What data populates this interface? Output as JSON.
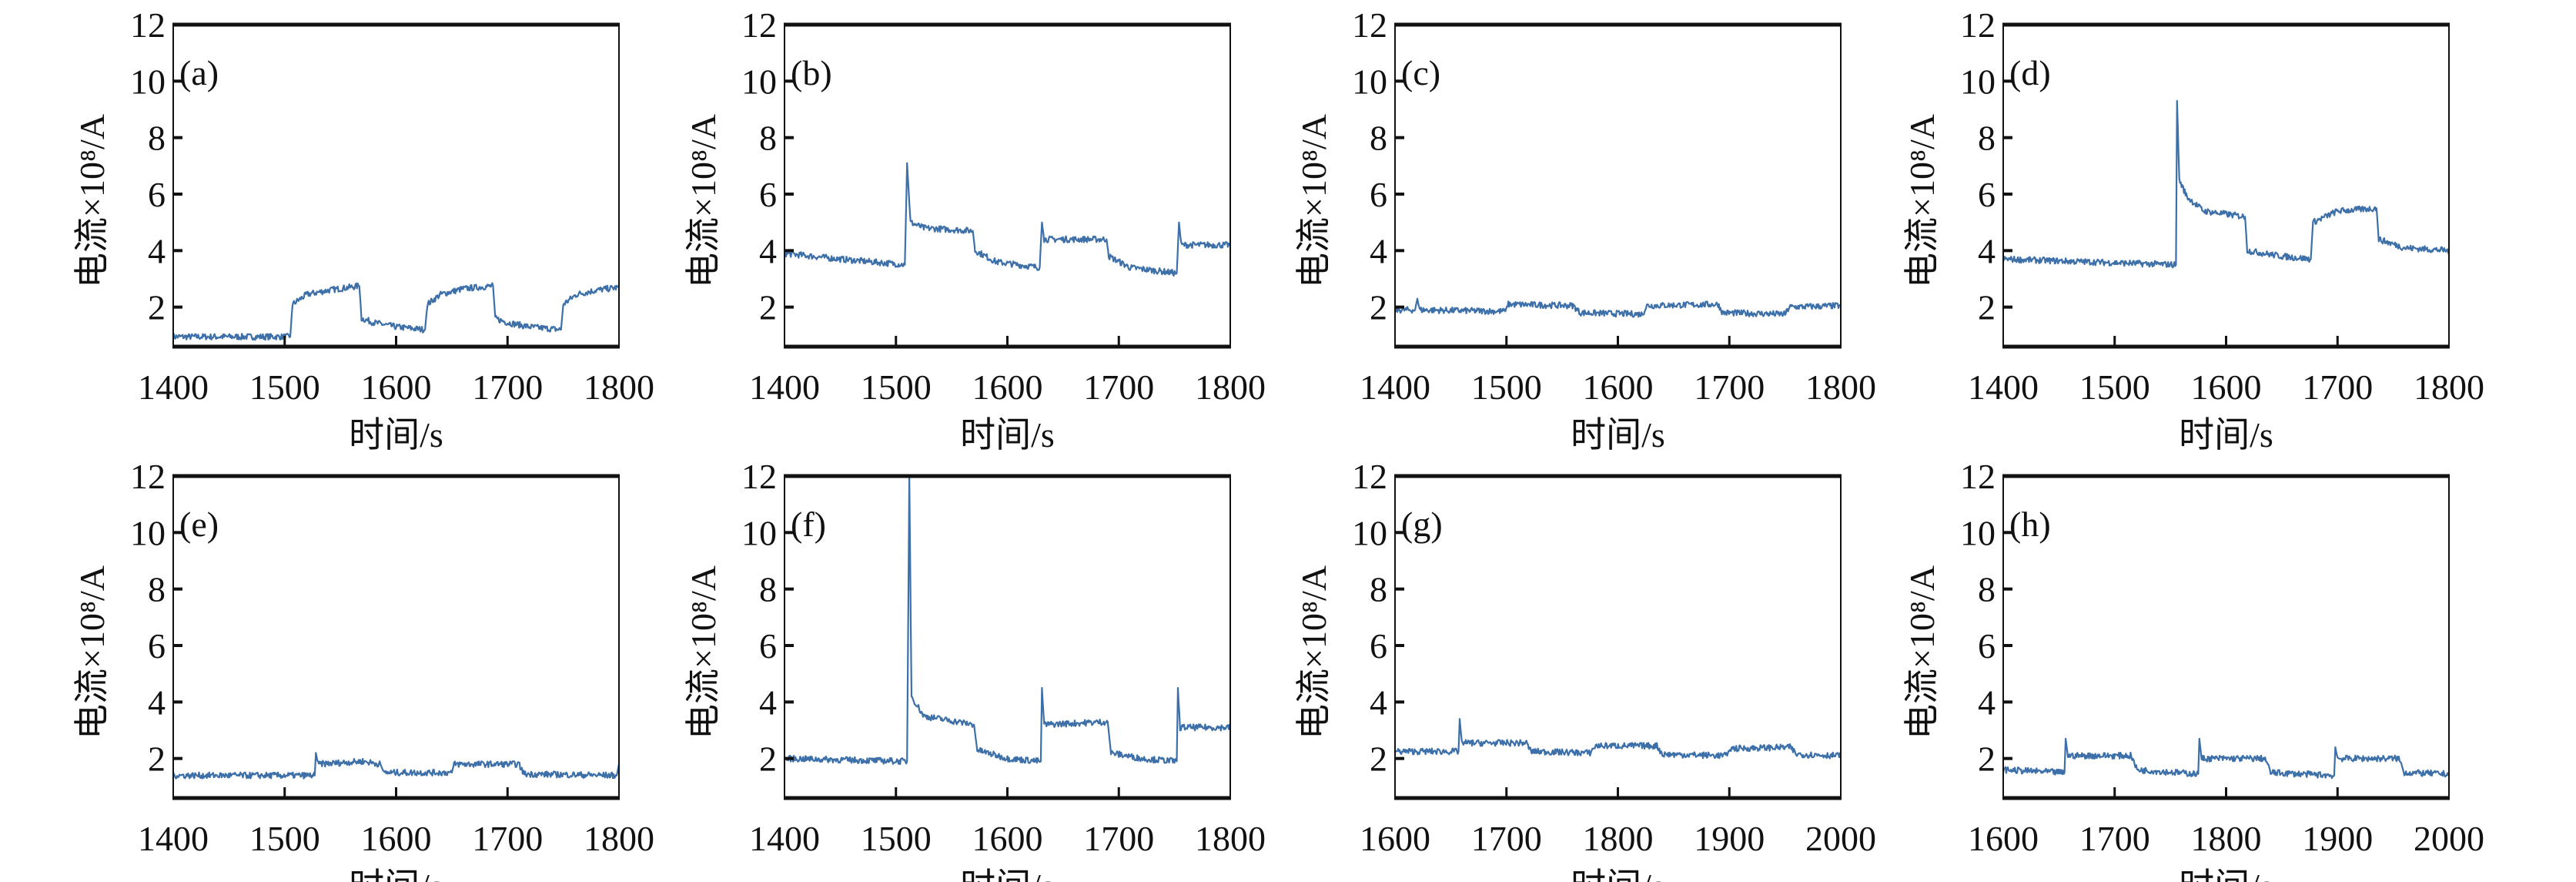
{
  "line_color": "#3d6fa8",
  "chart_data": [
    {
      "panel_label": "(a)",
      "type": "line",
      "xlabel": "时间/s",
      "ylabel": "电流×10⁸/A",
      "xlim": [
        1400,
        1800
      ],
      "ylim": [
        0.6,
        12
      ],
      "xticks": [
        "1400",
        "1500",
        "1600",
        "1700",
        "1800"
      ],
      "yticks": [
        "2",
        "4",
        "6",
        "8",
        "10",
        "12"
      ],
      "points": [
        [
          1400,
          0.95
        ],
        [
          1505,
          0.95
        ],
        [
          1507,
          2.1
        ],
        [
          1520,
          2.45
        ],
        [
          1540,
          2.6
        ],
        [
          1567,
          2.75
        ],
        [
          1569,
          1.6
        ],
        [
          1580,
          1.45
        ],
        [
          1600,
          1.3
        ],
        [
          1626,
          1.2
        ],
        [
          1628,
          2.1
        ],
        [
          1640,
          2.45
        ],
        [
          1660,
          2.65
        ],
        [
          1687,
          2.75
        ],
        [
          1689,
          1.6
        ],
        [
          1700,
          1.45
        ],
        [
          1720,
          1.3
        ],
        [
          1748,
          1.2
        ],
        [
          1750,
          2.1
        ],
        [
          1762,
          2.45
        ],
        [
          1780,
          2.6
        ],
        [
          1800,
          2.7
        ]
      ]
    },
    {
      "panel_label": "(b)",
      "type": "line",
      "xlabel": "时间/s",
      "ylabel": "电流×10⁸/A",
      "xlim": [
        1400,
        1800
      ],
      "ylim": [
        0.6,
        12
      ],
      "xticks": [
        "1400",
        "1500",
        "1600",
        "1700",
        "1800"
      ],
      "yticks": [
        "2",
        "4",
        "6",
        "8",
        "10",
        "12"
      ],
      "points": [
        [
          1400,
          3.9
        ],
        [
          1450,
          3.7
        ],
        [
          1508,
          3.5
        ],
        [
          1510,
          7.1
        ],
        [
          1513,
          5.0
        ],
        [
          1525,
          4.8
        ],
        [
          1569,
          4.7
        ],
        [
          1571,
          4.0
        ],
        [
          1590,
          3.6
        ],
        [
          1629,
          3.4
        ],
        [
          1631,
          5.0
        ],
        [
          1633,
          4.4
        ],
        [
          1689,
          4.4
        ],
        [
          1691,
          3.8
        ],
        [
          1710,
          3.4
        ],
        [
          1752,
          3.2
        ],
        [
          1754,
          5.0
        ],
        [
          1756,
          4.2
        ],
        [
          1800,
          4.2
        ]
      ]
    },
    {
      "panel_label": "(c)",
      "type": "line",
      "xlabel": "时间/s",
      "ylabel": "电流×10⁸/A",
      "xlim": [
        1400,
        1800
      ],
      "ylim": [
        0.6,
        12
      ],
      "xticks": [
        "1400",
        "1500",
        "1600",
        "1700",
        "1800"
      ],
      "yticks": [
        "2",
        "4",
        "6",
        "8",
        "10",
        "12"
      ],
      "points": [
        [
          1400,
          1.9
        ],
        [
          1418,
          1.9
        ],
        [
          1420,
          2.3
        ],
        [
          1422,
          1.9
        ],
        [
          1499,
          1.85
        ],
        [
          1501,
          2.1
        ],
        [
          1560,
          2.05
        ],
        [
          1566,
          1.8
        ],
        [
          1622,
          1.75
        ],
        [
          1626,
          2.05
        ],
        [
          1690,
          2.1
        ],
        [
          1694,
          1.8
        ],
        [
          1750,
          1.75
        ],
        [
          1754,
          2.0
        ],
        [
          1800,
          2.05
        ]
      ]
    },
    {
      "panel_label": "(d)",
      "type": "line",
      "xlabel": "时间/s",
      "ylabel": "电流×10⁸/A",
      "xlim": [
        1400,
        1800
      ],
      "ylim": [
        0.6,
        12
      ],
      "xticks": [
        "1400",
        "1500",
        "1600",
        "1700",
        "1800"
      ],
      "yticks": [
        "2",
        "4",
        "6",
        "8",
        "10",
        "12"
      ],
      "points": [
        [
          1400,
          3.7
        ],
        [
          1555,
          3.5
        ],
        [
          1556,
          9.3
        ],
        [
          1558,
          6.5
        ],
        [
          1565,
          5.9
        ],
        [
          1580,
          5.4
        ],
        [
          1617,
          5.2
        ],
        [
          1619,
          4.0
        ],
        [
          1650,
          3.8
        ],
        [
          1676,
          3.7
        ],
        [
          1678,
          5.0
        ],
        [
          1700,
          5.4
        ],
        [
          1735,
          5.5
        ],
        [
          1737,
          4.4
        ],
        [
          1760,
          4.1
        ],
        [
          1800,
          4.0
        ]
      ]
    },
    {
      "panel_label": "(e)",
      "type": "line",
      "xlabel": "时间/s",
      "ylabel": "电流×10⁸/A",
      "xlim": [
        1400,
        1800
      ],
      "ylim": [
        0.6,
        12
      ],
      "xticks": [
        "1400",
        "1500",
        "1600",
        "1700",
        "1800"
      ],
      "yticks": [
        "2",
        "4",
        "6",
        "8",
        "10",
        "12"
      ],
      "points": [
        [
          1400,
          1.4
        ],
        [
          1527,
          1.4
        ],
        [
          1528,
          2.2
        ],
        [
          1530,
          1.8
        ],
        [
          1570,
          1.9
        ],
        [
          1586,
          1.8
        ],
        [
          1589,
          1.5
        ],
        [
          1650,
          1.5
        ],
        [
          1652,
          1.8
        ],
        [
          1710,
          1.8
        ],
        [
          1715,
          1.45
        ],
        [
          1798,
          1.4
        ],
        [
          1800,
          1.8
        ]
      ]
    },
    {
      "panel_label": "(f)",
      "type": "line",
      "xlabel": "时间/s",
      "ylabel": "电流×10⁸/A",
      "xlim": [
        1400,
        1800
      ],
      "ylim": [
        0.6,
        12
      ],
      "xticks": [
        "1400",
        "1500",
        "1600",
        "1700",
        "1800"
      ],
      "yticks": [
        "2",
        "4",
        "6",
        "8",
        "10",
        "12"
      ],
      "points": [
        [
          1400,
          2.0
        ],
        [
          1510,
          1.9
        ],
        [
          1512,
          12
        ],
        [
          1514,
          4.2
        ],
        [
          1525,
          3.5
        ],
        [
          1570,
          3.2
        ],
        [
          1573,
          2.3
        ],
        [
          1600,
          2.0
        ],
        [
          1630,
          1.9
        ],
        [
          1631,
          4.5
        ],
        [
          1633,
          3.2
        ],
        [
          1690,
          3.3
        ],
        [
          1693,
          2.2
        ],
        [
          1720,
          2.0
        ],
        [
          1752,
          1.9
        ],
        [
          1753,
          4.5
        ],
        [
          1755,
          3.1
        ],
        [
          1800,
          3.1
        ]
      ]
    },
    {
      "panel_label": "(g)",
      "type": "line",
      "xlabel": "时间/s",
      "ylabel": "电流×10⁸/A",
      "xlim": [
        1600,
        2000
      ],
      "ylim": [
        0.6,
        12
      ],
      "xticks": [
        "1600",
        "1700",
        "1800",
        "1900",
        "2000"
      ],
      "yticks": [
        "2",
        "4",
        "6",
        "8",
        "10",
        "12"
      ],
      "points": [
        [
          1600,
          2.25
        ],
        [
          1657,
          2.25
        ],
        [
          1658,
          3.4
        ],
        [
          1660,
          2.55
        ],
        [
          1718,
          2.55
        ],
        [
          1722,
          2.25
        ],
        [
          1775,
          2.2
        ],
        [
          1780,
          2.45
        ],
        [
          1835,
          2.45
        ],
        [
          1840,
          2.15
        ],
        [
          1898,
          2.1
        ],
        [
          1900,
          2.35
        ],
        [
          1955,
          2.4
        ],
        [
          1960,
          2.15
        ],
        [
          2000,
          2.1
        ]
      ]
    },
    {
      "panel_label": "(h)",
      "type": "line",
      "xlabel": "时间/s",
      "ylabel": "电流×10⁸/A",
      "xlim": [
        1600,
        2000
      ],
      "ylim": [
        0.6,
        12
      ],
      "xticks": [
        "1600",
        "1700",
        "1800",
        "1900",
        "2000"
      ],
      "yticks": [
        "2",
        "4",
        "6",
        "8",
        "10",
        "12"
      ],
      "points": [
        [
          1600,
          1.6
        ],
        [
          1655,
          1.5
        ],
        [
          1656,
          2.7
        ],
        [
          1658,
          2.1
        ],
        [
          1715,
          2.1
        ],
        [
          1720,
          1.6
        ],
        [
          1775,
          1.45
        ],
        [
          1776,
          2.7
        ],
        [
          1778,
          2.0
        ],
        [
          1835,
          2.0
        ],
        [
          1840,
          1.5
        ],
        [
          1897,
          1.4
        ],
        [
          1898,
          2.4
        ],
        [
          1900,
          2.0
        ],
        [
          1955,
          2.0
        ],
        [
          1960,
          1.5
        ],
        [
          2000,
          1.45
        ]
      ]
    }
  ]
}
